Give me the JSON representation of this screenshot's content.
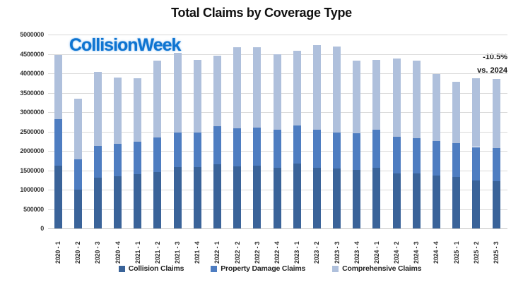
{
  "page": {
    "background": "#ffffff"
  },
  "branding": {
    "logo_text": "CollisionWeek",
    "logo_color": "#0e74d1"
  },
  "annotation": {
    "line1": "-10.5%",
    "line2": "vs. 2024"
  },
  "chart_data": {
    "type": "bar",
    "stacked": true,
    "title": "Total Claims by Coverage Type",
    "categories": [
      "2020 - 1",
      "2020 - 2",
      "2020 - 3",
      "2020 - 4",
      "2021 - 1",
      "2021 - 2",
      "2021 - 3",
      "2021 - 4",
      "2022 - 1",
      "2022 - 2",
      "2022 - 3",
      "2022 - 4",
      "2023 - 1",
      "2023 - 2",
      "2023 - 3",
      "2023 - 4",
      "2024 - 1",
      "2024 - 2",
      "2024 - 3",
      "2024 - 4",
      "2025 - 1",
      "2025 - 2",
      "2025 - 3"
    ],
    "series": [
      {
        "name": "Collision Claims",
        "color": "#3a6399",
        "values": [
          1610000,
          1000000,
          1310000,
          1340000,
          1400000,
          1460000,
          1590000,
          1590000,
          1650000,
          1600000,
          1610000,
          1570000,
          1670000,
          1570000,
          1550000,
          1510000,
          1560000,
          1420000,
          1420000,
          1360000,
          1330000,
          1240000,
          1210000
        ]
      },
      {
        "name": "Property Damage Claims",
        "color": "#4e7dc1",
        "values": [
          1200000,
          790000,
          820000,
          850000,
          840000,
          880000,
          880000,
          890000,
          980000,
          990000,
          990000,
          970000,
          990000,
          970000,
          930000,
          940000,
          980000,
          940000,
          910000,
          890000,
          870000,
          860000,
          870000
        ]
      },
      {
        "name": "Comprehensive Claims",
        "color": "#afc0dc",
        "values": [
          1660000,
          1560000,
          1910000,
          1700000,
          1630000,
          1990000,
          2050000,
          1860000,
          1820000,
          2090000,
          2080000,
          1950000,
          1920000,
          2190000,
          2210000,
          1870000,
          1810000,
          2020000,
          1990000,
          1740000,
          1580000,
          1780000,
          1770000
        ]
      }
    ],
    "ylim": [
      0,
      5000000
    ],
    "ytick_step": 500000,
    "y_tick_labels": [
      "0",
      "500000",
      "1000000",
      "1500000",
      "2000000",
      "2500000",
      "3000000",
      "3500000",
      "4000000",
      "4500000",
      "5000000"
    ],
    "grid": true,
    "legend_position": "bottom",
    "gridline_color": "#d9d9d9",
    "text_color": "#262626"
  }
}
